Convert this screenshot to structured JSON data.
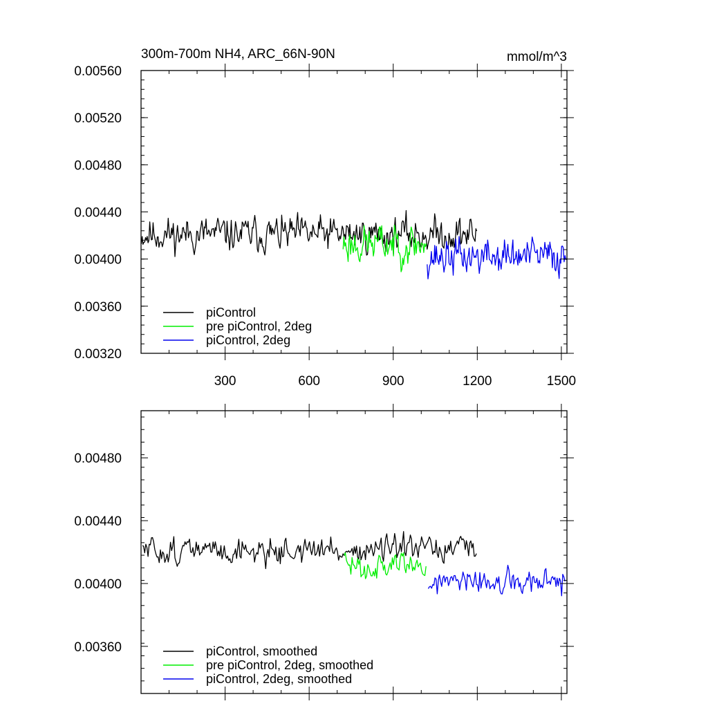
{
  "chart_data": [
    {
      "type": "line",
      "title": "300m-700m NH4, ARC_66N-90N",
      "units": "mmol/m^3",
      "xlim": [
        0,
        1520
      ],
      "ylim": [
        0.0032,
        0.0056
      ],
      "x_ticks": [
        300,
        600,
        900,
        1200,
        1500
      ],
      "x_tick_labels": [
        "300",
        "600",
        "900",
        "1200",
        "1500"
      ],
      "y_ticks": [
        0.0032,
        0.0036,
        0.004,
        0.0044,
        0.0048,
        0.0052,
        0.0056
      ],
      "y_tick_labels": [
        "0.00320",
        "0.00360",
        "0.00400",
        "0.00440",
        "0.00480",
        "0.00520",
        "0.00560"
      ],
      "legend_position": "bottom-left",
      "series": [
        {
          "name": "piControl",
          "color": "#000000",
          "x_start": 1,
          "x_end": 1200,
          "step": 3,
          "mean": 0.00421,
          "amplitude": 0.00022,
          "seed": 11
        },
        {
          "name": "pre piControl, 2deg",
          "color": "#00ee00",
          "x_start": 721,
          "x_end": 1020,
          "step": 3,
          "mean": 0.00413,
          "amplitude": 0.00025,
          "seed": 23
        },
        {
          "name": "piControl, 2deg",
          "color": "#0000ee",
          "x_start": 1021,
          "x_end": 1520,
          "step": 3,
          "mean": 0.00402,
          "amplitude": 0.00024,
          "seed": 37
        }
      ]
    },
    {
      "type": "line",
      "xlim": [
        0,
        1520
      ],
      "ylim": [
        0.0033,
        0.0051
      ],
      "x_ticks": [
        300,
        600,
        900,
        1200,
        1500
      ],
      "y_ticks": [
        0.0036,
        0.004,
        0.0044,
        0.0048
      ],
      "y_tick_labels": [
        "0.00360",
        "0.00400",
        "0.00440",
        "0.00480"
      ],
      "legend_position": "bottom-left",
      "series": [
        {
          "name": "piControl, smoothed",
          "color": "#000000",
          "x_start": 5,
          "x_end": 1200,
          "step": 4,
          "mean": 0.00421,
          "amplitude": 0.00013,
          "seed": 51
        },
        {
          "name": "pre piControl, 2deg, smoothed",
          "color": "#00ee00",
          "x_start": 725,
          "x_end": 1020,
          "step": 4,
          "mean": 0.00412,
          "amplitude": 0.00014,
          "seed": 63
        },
        {
          "name": "piControl, 2deg, smoothed",
          "color": "#0000ee",
          "x_start": 1025,
          "x_end": 1515,
          "step": 4,
          "mean": 0.004,
          "amplitude": 0.00013,
          "seed": 77
        }
      ]
    }
  ]
}
